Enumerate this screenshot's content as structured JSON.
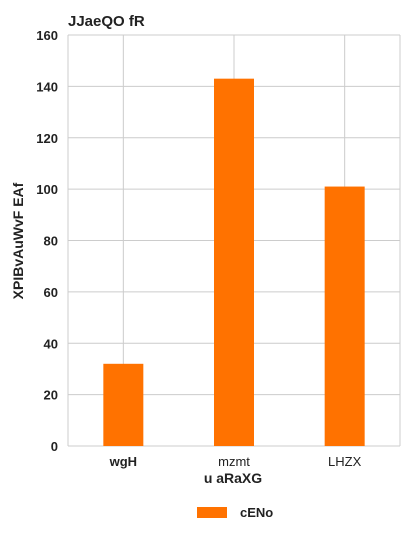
{
  "chart_data": {
    "type": "bar",
    "title": "JJaeQO fR",
    "xlabel": "u aRaXG",
    "ylabel": "XPIBvAuWvF EAf",
    "categories": [
      "wgH",
      "mzmt",
      "LHZX"
    ],
    "series": [
      {
        "name": "cENo",
        "values": [
          32,
          143,
          101
        ],
        "color": "#ff7200"
      }
    ],
    "ylim": [
      0,
      160
    ],
    "yticks": [
      0,
      20,
      40,
      60,
      80,
      100,
      120,
      140,
      160
    ],
    "grid": true,
    "legend": "bottom-center",
    "bold_categories": [
      "wgH"
    ]
  }
}
